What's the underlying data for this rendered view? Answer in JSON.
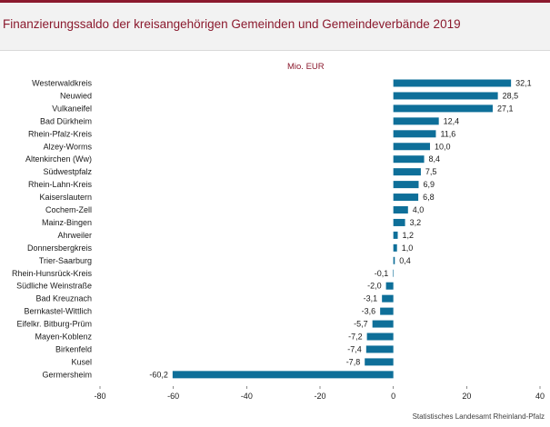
{
  "title": "Finanzierungssaldo der kreisangehörigen Gemeinden und Gemeindeverbände 2019",
  "source": "Statistisches Landesamt Rheinland-Pfalz",
  "colors": {
    "bar": "#0e6f99",
    "title": "#8b1a2e",
    "axis": "#404040"
  },
  "chart_data": {
    "type": "bar",
    "orientation": "horizontal",
    "unit_label": "Mio. EUR",
    "categories": [
      "Westerwaldkreis",
      "Neuwied",
      "Vulkaneifel",
      "Bad Dürkheim",
      "Rhein-Pfalz-Kreis",
      "Alzey-Worms",
      "Altenkirchen (Ww)",
      "Südwestpfalz",
      "Rhein-Lahn-Kreis",
      "Kaiserslautern",
      "Cochem-Zell",
      "Mainz-Bingen",
      "Ahrweiler",
      "Donnersbergkreis",
      "Trier-Saarburg",
      "Rhein-Hunsrück-Kreis",
      "Südliche Weinstraße",
      "Bad Kreuznach",
      "Bernkastel-Wittlich",
      "Eifelkr. Bitburg-Prüm",
      "Mayen-Koblenz",
      "Birkenfeld",
      "Kusel",
      "Germersheim"
    ],
    "values": [
      32.1,
      28.5,
      27.1,
      12.4,
      11.6,
      10.0,
      8.4,
      7.5,
      6.9,
      6.8,
      4.0,
      3.2,
      1.2,
      1.0,
      0.4,
      -0.1,
      -2.0,
      -3.1,
      -3.6,
      -5.7,
      -7.2,
      -7.4,
      -7.8,
      -60.2
    ],
    "value_labels": [
      "32,1",
      "28,5",
      "27,1",
      "12,4",
      "11,6",
      "10,0",
      "8,4",
      "7,5",
      "6,9",
      "6,8",
      "4,0",
      "3,2",
      "1,2",
      "1,0",
      "0,4",
      "-0,1",
      "-2,0",
      "-3,1",
      "-3,6",
      "-5,7",
      "-7,2",
      "-7,4",
      "-7,8",
      "-60,2"
    ],
    "xlim": [
      -80,
      40
    ],
    "ticks": [
      -80,
      -60,
      -40,
      -20,
      0,
      20,
      40
    ],
    "tick_labels": [
      "-80",
      "-60",
      "-40",
      "-20",
      "0",
      "20",
      "40"
    ],
    "grid": false,
    "legend": "none"
  }
}
